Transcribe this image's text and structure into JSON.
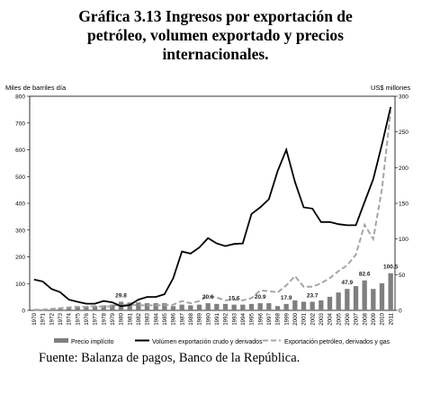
{
  "title": {
    "line1": "Gráfica 3.13 Ingresos por exportación de",
    "line2": "petróleo, volumen exportado y  precios",
    "line3": "internacionales."
  },
  "source": "Fuente: Balanza de pagos, Banco de la República.",
  "chart_data": {
    "type": "bar+line",
    "ylabel_left": "Miles de barriles día",
    "ylabel_right": "US$ millones",
    "ylim_left": [
      0,
      800
    ],
    "ylim_right": [
      0,
      300
    ],
    "yticks_left": [
      "0",
      "100",
      "200",
      "300",
      "400",
      "500",
      "600",
      "700",
      "800"
    ],
    "yticks_right": [
      "0",
      "50",
      "100",
      "150",
      "200",
      "250",
      "300"
    ],
    "categories": [
      "1970",
      "1971",
      "1972",
      "1973",
      "1974",
      "1975",
      "1976",
      "1977",
      "1978",
      "1979",
      "1980",
      "1981",
      "1982",
      "1983",
      "1984",
      "1985",
      "1986",
      "1987",
      "1988",
      "1989",
      "1990",
      "1991",
      "1992",
      "1993",
      "1994",
      "1995",
      "1996",
      "1997",
      "1998",
      "1999",
      "2000",
      "2001",
      "2002",
      "2003",
      "2004",
      "2005",
      "2006",
      "2007",
      "2008",
      "2009",
      "2010",
      "2011"
    ],
    "series": [
      {
        "name": "Precio implícito",
        "kind": "bar",
        "axis": "right",
        "color": "#7f7f7f",
        "values": [
          1,
          1,
          1,
          2,
          5,
          5,
          6,
          6,
          7,
          8,
          12,
          11,
          11,
          10,
          10,
          10,
          6,
          8,
          7,
          8,
          10,
          9,
          9,
          8,
          8,
          9,
          10,
          10,
          6,
          9,
          14,
          12,
          12,
          14,
          19,
          25,
          30,
          34,
          42,
          30,
          38,
          52
        ]
      },
      {
        "name": "Volúmen exportación crudo y derivados",
        "kind": "line",
        "axis": "left",
        "color": "#000000",
        "values": [
          115,
          108,
          80,
          68,
          40,
          32,
          25,
          25,
          35,
          30,
          15,
          20,
          40,
          50,
          50,
          60,
          120,
          220,
          212,
          235,
          270,
          250,
          240,
          248,
          250,
          360,
          385,
          415,
          520,
          600,
          480,
          385,
          380,
          330,
          330,
          322,
          318,
          318,
          405,
          490,
          620,
          760
        ]
      },
      {
        "name": "Exportación petróleo, derivados y gas",
        "kind": "line-dashed",
        "axis": "right",
        "color": "#a6a6a6",
        "values": [
          1,
          1,
          2,
          3,
          4,
          5,
          5,
          6,
          5,
          6,
          8,
          8,
          7,
          7,
          7,
          7,
          8,
          13,
          10,
          13,
          20,
          18,
          14,
          15,
          14,
          17,
          28,
          27,
          25,
          35,
          48,
          33,
          33,
          38,
          45,
          55,
          63,
          78,
          120,
          100,
          170,
          280
        ]
      }
    ],
    "data_labels": [
      {
        "category": "1980",
        "text": "29.8"
      },
      {
        "category": "1990",
        "text": "20.6"
      },
      {
        "category": "1993",
        "text": "15.6"
      },
      {
        "category": "1996",
        "text": "20.9"
      },
      {
        "category": "1999",
        "text": "17.9"
      },
      {
        "category": "2002",
        "text": "23.7"
      },
      {
        "category": "2006",
        "text": "47.9"
      },
      {
        "category": "2008",
        "text": "82.6"
      },
      {
        "category": "2011",
        "text": "100.5"
      }
    ],
    "grid": false,
    "legend_position": "bottom"
  }
}
